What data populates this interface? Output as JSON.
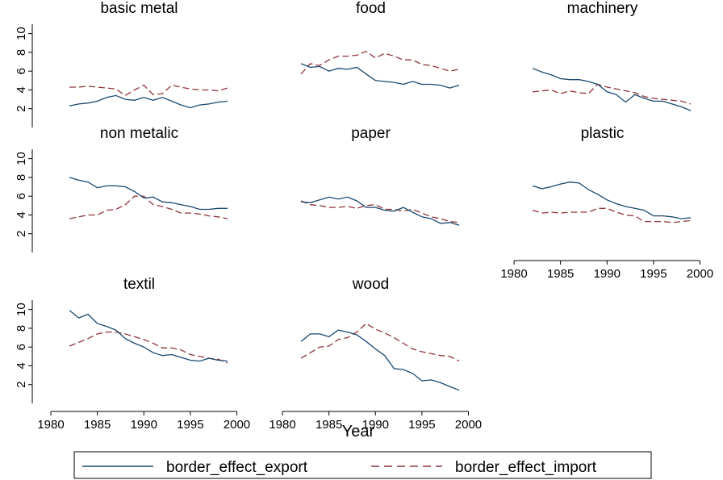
{
  "chart_data": {
    "type": "line",
    "xlabel": "Year",
    "ylabel": "",
    "series_names": [
      "border_effect_export",
      "border_effect_import"
    ],
    "series_colors": {
      "border_effect_export": "#1a476f",
      "border_effect_import": "#90353b"
    },
    "xlim": [
      1978,
      2001
    ],
    "ylim": [
      0,
      11
    ],
    "grid": false,
    "legend_position": "bottom",
    "x": [
      1982,
      1983,
      1984,
      1985,
      1986,
      1987,
      1988,
      1989,
      1990,
      1991,
      1992,
      1993,
      1994,
      1995,
      1996,
      1997,
      1998,
      1999
    ],
    "panels": [
      {
        "title": "basic metal",
        "export": [
          2.3,
          2.5,
          2.6,
          2.8,
          3.2,
          3.4,
          3.0,
          2.9,
          3.2,
          2.9,
          3.2,
          2.8,
          2.4,
          2.1,
          2.4,
          2.5,
          2.7,
          2.8
        ],
        "import": [
          4.3,
          4.3,
          4.4,
          4.3,
          4.2,
          4.1,
          3.4,
          4.0,
          4.5,
          3.5,
          3.6,
          4.5,
          4.3,
          4.1,
          4.0,
          4.0,
          3.9,
          4.2
        ]
      },
      {
        "title": "food",
        "export": [
          6.8,
          6.4,
          6.5,
          6.0,
          6.3,
          6.2,
          6.4,
          5.7,
          5.0,
          4.9,
          4.8,
          4.6,
          4.9,
          4.6,
          4.6,
          4.5,
          4.2,
          4.5
        ],
        "import": [
          5.7,
          6.8,
          6.6,
          7.2,
          7.6,
          7.6,
          7.7,
          8.1,
          7.4,
          7.9,
          7.6,
          7.2,
          7.2,
          6.7,
          6.6,
          6.3,
          6.0,
          6.2
        ]
      },
      {
        "title": "machinery",
        "export": [
          6.3,
          5.9,
          5.6,
          5.2,
          5.1,
          5.1,
          4.9,
          4.6,
          3.8,
          3.5,
          2.7,
          3.5,
          3.1,
          2.8,
          2.8,
          2.5,
          2.2,
          1.8
        ],
        "import": [
          3.8,
          3.9,
          4.0,
          3.6,
          3.9,
          3.7,
          3.6,
          4.6,
          4.3,
          4.1,
          3.9,
          3.7,
          3.3,
          3.1,
          3.0,
          2.9,
          2.8,
          2.5
        ]
      },
      {
        "title": "non metalic",
        "export": [
          8.0,
          7.7,
          7.5,
          6.9,
          7.1,
          7.1,
          7.0,
          6.5,
          5.8,
          5.9,
          5.4,
          5.3,
          5.1,
          4.9,
          4.6,
          4.6,
          4.7,
          4.7
        ],
        "import": [
          3.6,
          3.8,
          4.0,
          4.0,
          4.5,
          4.6,
          5.1,
          6.0,
          6.0,
          5.1,
          4.9,
          4.6,
          4.2,
          4.2,
          4.1,
          3.9,
          3.8,
          3.6
        ]
      },
      {
        "title": "paper",
        "export": [
          5.4,
          5.3,
          5.6,
          5.9,
          5.7,
          5.9,
          5.5,
          4.8,
          4.8,
          4.5,
          4.4,
          4.8,
          4.3,
          3.8,
          3.6,
          3.1,
          3.2,
          2.9
        ],
        "import": [
          5.5,
          5.1,
          5.0,
          4.8,
          4.8,
          4.9,
          4.7,
          5.0,
          5.1,
          4.6,
          4.6,
          4.4,
          4.6,
          4.2,
          3.8,
          3.6,
          3.3,
          3.2
        ]
      },
      {
        "title": "plastic",
        "export": [
          7.1,
          6.8,
          7.0,
          7.3,
          7.5,
          7.4,
          6.7,
          6.2,
          5.6,
          5.2,
          4.9,
          4.7,
          4.5,
          3.9,
          3.9,
          3.8,
          3.6,
          3.7
        ],
        "import": [
          4.5,
          4.2,
          4.3,
          4.2,
          4.3,
          4.3,
          4.3,
          4.7,
          4.7,
          4.3,
          4.0,
          3.9,
          3.3,
          3.3,
          3.3,
          3.2,
          3.3,
          3.4
        ]
      },
      {
        "title": "textil",
        "export": [
          9.9,
          9.1,
          9.5,
          8.5,
          8.2,
          7.8,
          6.9,
          6.4,
          6.0,
          5.4,
          5.1,
          5.2,
          4.9,
          4.6,
          4.5,
          4.8,
          4.6,
          4.5
        ],
        "import": [
          6.1,
          6.5,
          6.9,
          7.4,
          7.6,
          7.6,
          7.4,
          7.1,
          6.8,
          6.4,
          5.9,
          5.9,
          5.7,
          5.2,
          5.0,
          4.8,
          4.7,
          4.3
        ]
      },
      {
        "title": "wood",
        "export": [
          6.6,
          7.4,
          7.4,
          7.1,
          7.8,
          7.6,
          7.3,
          6.6,
          5.8,
          5.1,
          3.7,
          3.6,
          3.2,
          2.4,
          2.5,
          2.2,
          1.8,
          1.4
        ],
        "import": [
          4.8,
          5.4,
          6.0,
          6.1,
          6.8,
          7.0,
          7.6,
          8.5,
          7.9,
          7.5,
          7.0,
          6.4,
          5.8,
          5.5,
          5.3,
          5.1,
          5.0,
          4.5
        ]
      }
    ],
    "y_ticks": [
      2,
      4,
      6,
      8,
      10
    ],
    "y_tick_labels": [
      "2",
      "4",
      "6",
      "8",
      "10"
    ],
    "x_ticks": [
      1980,
      1985,
      1990,
      1995,
      2000
    ],
    "x_tick_labels": [
      "1980",
      "1985",
      "1990",
      "1995",
      "2000"
    ]
  }
}
